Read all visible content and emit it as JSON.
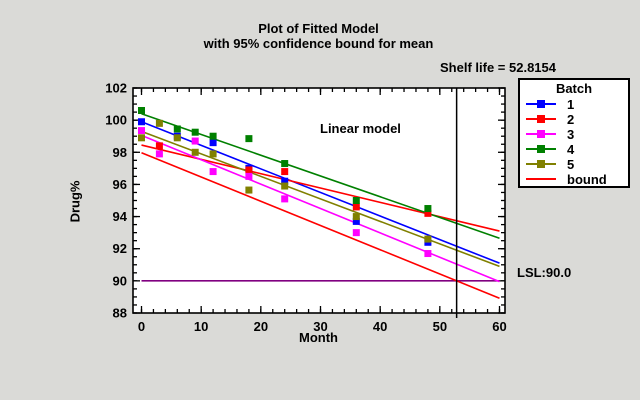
{
  "chart_data": {
    "type": "scatter",
    "title": "Plot of Fitted Model",
    "subtitle": "with 95% confidence bound for mean",
    "xlabel": "Month",
    "ylabel": "Drug%",
    "xlim": [
      -1.5,
      61
    ],
    "ylim": [
      88,
      102
    ],
    "x_ticks": [
      0,
      10,
      20,
      30,
      40,
      50,
      60
    ],
    "y_ticks": [
      88,
      90,
      92,
      94,
      96,
      98,
      100,
      102
    ],
    "x_minor_step": 2,
    "y_minor_step": 0.5,
    "grid": false,
    "legend_title": "Batch",
    "legend_position": "right",
    "series": [
      {
        "name": "1",
        "color": "#0000ff",
        "marker": true,
        "fit": [
          [
            0,
            99.9
          ],
          [
            60,
            91.1
          ]
        ],
        "points": [
          [
            0,
            99.9
          ],
          [
            6,
            99.0
          ],
          [
            12,
            98.6
          ],
          [
            18,
            97.0
          ],
          [
            24,
            96.2
          ],
          [
            36,
            93.7
          ],
          [
            48,
            92.4
          ]
        ]
      },
      {
        "name": "2",
        "color": "#ff0000",
        "marker": true,
        "fit": [
          [
            0,
            98.45
          ],
          [
            60,
            93.1
          ]
        ],
        "points": [
          [
            3,
            98.4
          ],
          [
            18,
            96.9
          ],
          [
            24,
            96.8
          ],
          [
            36,
            94.6
          ],
          [
            48,
            94.2
          ]
        ]
      },
      {
        "name": "3",
        "color": "#ff00ff",
        "marker": true,
        "fit": [
          [
            0,
            99.05
          ],
          [
            60,
            89.95
          ]
        ],
        "points": [
          [
            0,
            99.35
          ],
          [
            3,
            97.9
          ],
          [
            9,
            98.7
          ],
          [
            12,
            96.8
          ],
          [
            18,
            96.5
          ],
          [
            24,
            95.1
          ],
          [
            36,
            93.0
          ],
          [
            48,
            91.7
          ]
        ]
      },
      {
        "name": "4",
        "color": "#008000",
        "marker": true,
        "fit": [
          [
            0,
            100.4
          ],
          [
            60,
            92.65
          ]
        ],
        "points": [
          [
            0,
            100.6
          ],
          [
            6,
            99.45
          ],
          [
            9,
            99.25
          ],
          [
            12,
            99.0
          ],
          [
            18,
            98.85
          ],
          [
            24,
            97.3
          ],
          [
            36,
            95.0
          ],
          [
            48,
            94.5
          ]
        ]
      },
      {
        "name": "5",
        "color": "#808000",
        "marker": true,
        "fit": [
          [
            0,
            99.3
          ],
          [
            60,
            90.9
          ]
        ],
        "points": [
          [
            0,
            98.9
          ],
          [
            3,
            99.8
          ],
          [
            6,
            98.9
          ],
          [
            9,
            98.0
          ],
          [
            12,
            97.9
          ],
          [
            18,
            95.65
          ],
          [
            24,
            95.9
          ],
          [
            36,
            94.0
          ],
          [
            48,
            92.6
          ]
        ]
      },
      {
        "name": "bound",
        "color": "#ff0000",
        "marker": false,
        "fit": [
          [
            0,
            97.97
          ],
          [
            60,
            88.92
          ]
        ],
        "points": []
      }
    ],
    "lsl": {
      "value": 90.0,
      "color": "#800080",
      "label": "LSL:90.0"
    },
    "shelf_life": {
      "x": 52.8154,
      "label": "Shelf life = 52.8154"
    },
    "annotation": "Linear model"
  }
}
